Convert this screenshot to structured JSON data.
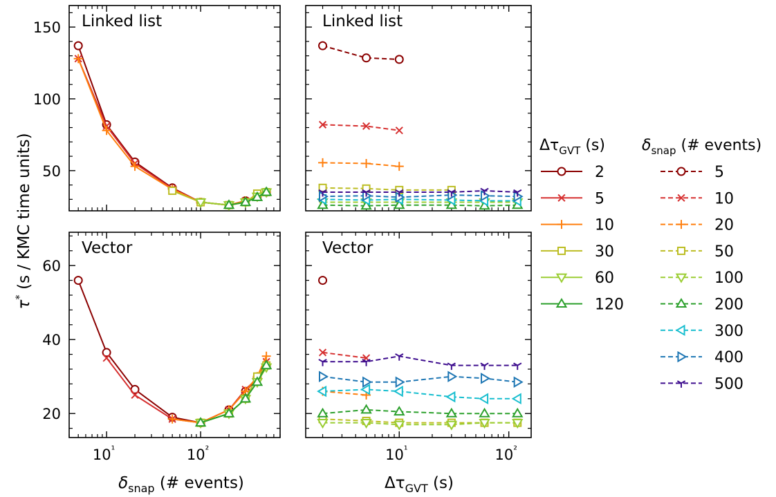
{
  "figure": {
    "ylabel_main": "τ",
    "ylabel_sup": "*",
    "ylabel_rest": " (s / KMC time units)",
    "xlabel_left_main": "δ",
    "xlabel_left_sub": "snap",
    "xlabel_left_rest": " (# events)",
    "xlabel_right_main": "Δτ",
    "xlabel_right_sub": "GVT",
    "xlabel_right_rest": " (s)"
  },
  "legends": {
    "gvt": {
      "title_main": "Δτ",
      "title_sub": "GVT",
      "title_rest": " (s)",
      "entries": [
        "2",
        "5",
        "10",
        "30",
        "60",
        "120"
      ]
    },
    "snap": {
      "title_main": "δ",
      "title_sub": "snap",
      "title_rest": " (# events)",
      "entries": [
        "5",
        "10",
        "20",
        "50",
        "100",
        "200",
        "300",
        "400",
        "500"
      ]
    }
  },
  "colors": {
    "gvt": {
      "2": "#8b0000",
      "5": "#d62f2f",
      "10": "#ff7f0e",
      "30": "#bcbd22",
      "60": "#9acd32",
      "120": "#2ca02c"
    },
    "snap": {
      "5": "#8b0000",
      "10": "#d62f2f",
      "20": "#ff7f0e",
      "50": "#bcbd22",
      "100": "#9acd32",
      "200": "#2ca02c",
      "300": "#17becf",
      "400": "#1f77b4",
      "500": "#3f0f8f"
    }
  },
  "markers": {
    "gvt": {
      "2": "circle",
      "5": "x",
      "10": "plus",
      "30": "square",
      "60": "tri-down",
      "120": "tri-up"
    },
    "snap": {
      "5": "circle",
      "10": "x",
      "20": "plus",
      "50": "square",
      "100": "tri-down",
      "200": "tri-up",
      "300": "tri-left",
      "400": "tri-right",
      "500": "tri-y"
    }
  },
  "chart_data": [
    {
      "type": "line",
      "panel": "top-left",
      "title": "Linked list",
      "x_scale": "log",
      "xlim": [
        4,
        700
      ],
      "ylim": [
        22,
        165
      ],
      "yticks": [
        50,
        100,
        150
      ],
      "series_by": "gvt",
      "series": [
        {
          "name": "2",
          "x": [
            5,
            10,
            20,
            50,
            100,
            200,
            300,
            400,
            500
          ],
          "y": [
            137,
            82,
            56,
            38,
            28,
            26,
            29,
            32,
            35
          ]
        },
        {
          "name": "5",
          "x": [
            5,
            10,
            20,
            50,
            100,
            200,
            300,
            400,
            500
          ],
          "y": [
            128,
            81,
            55,
            37.5,
            28,
            26,
            29,
            32,
            35
          ]
        },
        {
          "name": "10",
          "x": [
            5,
            10,
            20,
            50,
            100,
            200,
            300,
            400,
            500
          ],
          "y": [
            128,
            78,
            53,
            37,
            28,
            26,
            29,
            32,
            35
          ]
        },
        {
          "name": "30",
          "x": [
            50,
            100,
            200,
            300,
            400,
            500
          ],
          "y": [
            36,
            28,
            26,
            28,
            34,
            35
          ]
        },
        {
          "name": "60",
          "x": [
            100,
            200,
            300,
            400,
            500
          ],
          "y": [
            28,
            26,
            28,
            32,
            35
          ]
        },
        {
          "name": "120",
          "x": [
            200,
            300,
            400,
            500
          ],
          "y": [
            26,
            28,
            31.5,
            35
          ]
        }
      ]
    },
    {
      "type": "line",
      "panel": "top-right",
      "title": "Linked list",
      "x_scale": "log",
      "xlim": [
        1.4,
        160
      ],
      "ylim": [
        22,
        165
      ],
      "series_by": "snap",
      "series": [
        {
          "name": "5",
          "x": [
            2,
            5,
            10
          ],
          "y": [
            137,
            128.5,
            127.5
          ]
        },
        {
          "name": "10",
          "x": [
            2,
            5,
            10
          ],
          "y": [
            82,
            81,
            78
          ]
        },
        {
          "name": "20",
          "x": [
            2,
            5,
            10
          ],
          "y": [
            55.5,
            55,
            53
          ]
        },
        {
          "name": "50",
          "x": [
            2,
            5,
            10,
            30
          ],
          "y": [
            38,
            37.5,
            36.5,
            36.5
          ]
        },
        {
          "name": "100",
          "x": [
            2,
            5,
            10,
            30,
            60,
            120
          ],
          "y": [
            28,
            28,
            28,
            28,
            28,
            28
          ]
        },
        {
          "name": "200",
          "x": [
            2,
            5,
            10,
            30,
            60,
            120
          ],
          "y": [
            26,
            25.5,
            26,
            26,
            25.5,
            26
          ]
        },
        {
          "name": "300",
          "x": [
            2,
            5,
            10,
            30,
            60,
            120
          ],
          "y": [
            30,
            29.5,
            30,
            29.5,
            29,
            29
          ]
        },
        {
          "name": "400",
          "x": [
            2,
            5,
            10,
            30,
            60,
            120
          ],
          "y": [
            32,
            32.5,
            31.5,
            33,
            32.5,
            32
          ]
        },
        {
          "name": "500",
          "x": [
            2,
            5,
            10,
            30,
            60,
            120
          ],
          "y": [
            35,
            35,
            35,
            35,
            36,
            35
          ]
        }
      ]
    },
    {
      "type": "line",
      "panel": "bottom-left",
      "title": "Vector",
      "x_scale": "log",
      "xlim": [
        4,
        700
      ],
      "xticks": [
        "10¹",
        "10²"
      ],
      "ylim": [
        13.5,
        69
      ],
      "yticks": [
        20,
        40,
        60
      ],
      "series_by": "gvt",
      "series": [
        {
          "name": "2",
          "x": [
            5,
            10,
            20,
            50,
            100,
            200,
            300,
            400,
            500
          ],
          "y": [
            56,
            36.5,
            26.5,
            19,
            17.5,
            21,
            26,
            29.5,
            33
          ]
        },
        {
          "name": "5",
          "x": [
            10,
            20,
            50,
            100,
            200,
            300,
            400,
            500
          ],
          "y": [
            35,
            25,
            18.5,
            17.5,
            21,
            26.5,
            29.5,
            34
          ]
        },
        {
          "name": "10",
          "x": [
            50,
            100,
            200,
            300,
            400,
            500
          ],
          "y": [
            18.5,
            17.5,
            21,
            26,
            30,
            35.5
          ]
        },
        {
          "name": "30",
          "x": [
            100,
            200,
            300,
            400,
            500
          ],
          "y": [
            17.5,
            20,
            24,
            30,
            33
          ]
        },
        {
          "name": "60",
          "x": [
            100,
            200,
            300,
            400,
            500
          ],
          "y": [
            17.5,
            20,
            24,
            28.5,
            32.5
          ]
        },
        {
          "name": "120",
          "x": [
            100,
            200,
            300,
            400,
            500
          ],
          "y": [
            17.5,
            20,
            24,
            28.5,
            33
          ]
        }
      ]
    },
    {
      "type": "line",
      "panel": "bottom-right",
      "title": "Vector",
      "x_scale": "log",
      "xlim": [
        1.4,
        160
      ],
      "xticks": [
        "10¹",
        "10²"
      ],
      "ylim": [
        13.5,
        69
      ],
      "series_by": "snap",
      "series": [
        {
          "name": "5",
          "x": [
            2
          ],
          "y": [
            56
          ]
        },
        {
          "name": "10",
          "x": [
            2,
            5
          ],
          "y": [
            36.5,
            35
          ]
        },
        {
          "name": "20",
          "x": [
            2,
            5
          ],
          "y": [
            26,
            25
          ]
        },
        {
          "name": "50",
          "x": [
            2,
            5,
            10,
            30,
            60,
            120
          ],
          "y": [
            18.5,
            18,
            17.5,
            17.5,
            17.5,
            17.5
          ]
        },
        {
          "name": "100",
          "x": [
            2,
            5,
            10,
            30,
            60,
            120
          ],
          "y": [
            17.5,
            17.5,
            17,
            17,
            17.5,
            17.5
          ]
        },
        {
          "name": "200",
          "x": [
            2,
            5,
            10,
            30,
            60,
            120
          ],
          "y": [
            20,
            21,
            20.5,
            20,
            20,
            20
          ]
        },
        {
          "name": "300",
          "x": [
            2,
            5,
            10,
            30,
            60,
            120
          ],
          "y": [
            26,
            26.5,
            26,
            24.5,
            24,
            24
          ]
        },
        {
          "name": "400",
          "x": [
            2,
            5,
            10,
            30,
            60,
            120
          ],
          "y": [
            30,
            28.5,
            28.5,
            30,
            29.5,
            28.5
          ]
        },
        {
          "name": "500",
          "x": [
            2,
            5,
            10,
            30,
            60,
            120
          ],
          "y": [
            34,
            34,
            35.5,
            33,
            33,
            33
          ]
        }
      ]
    }
  ]
}
